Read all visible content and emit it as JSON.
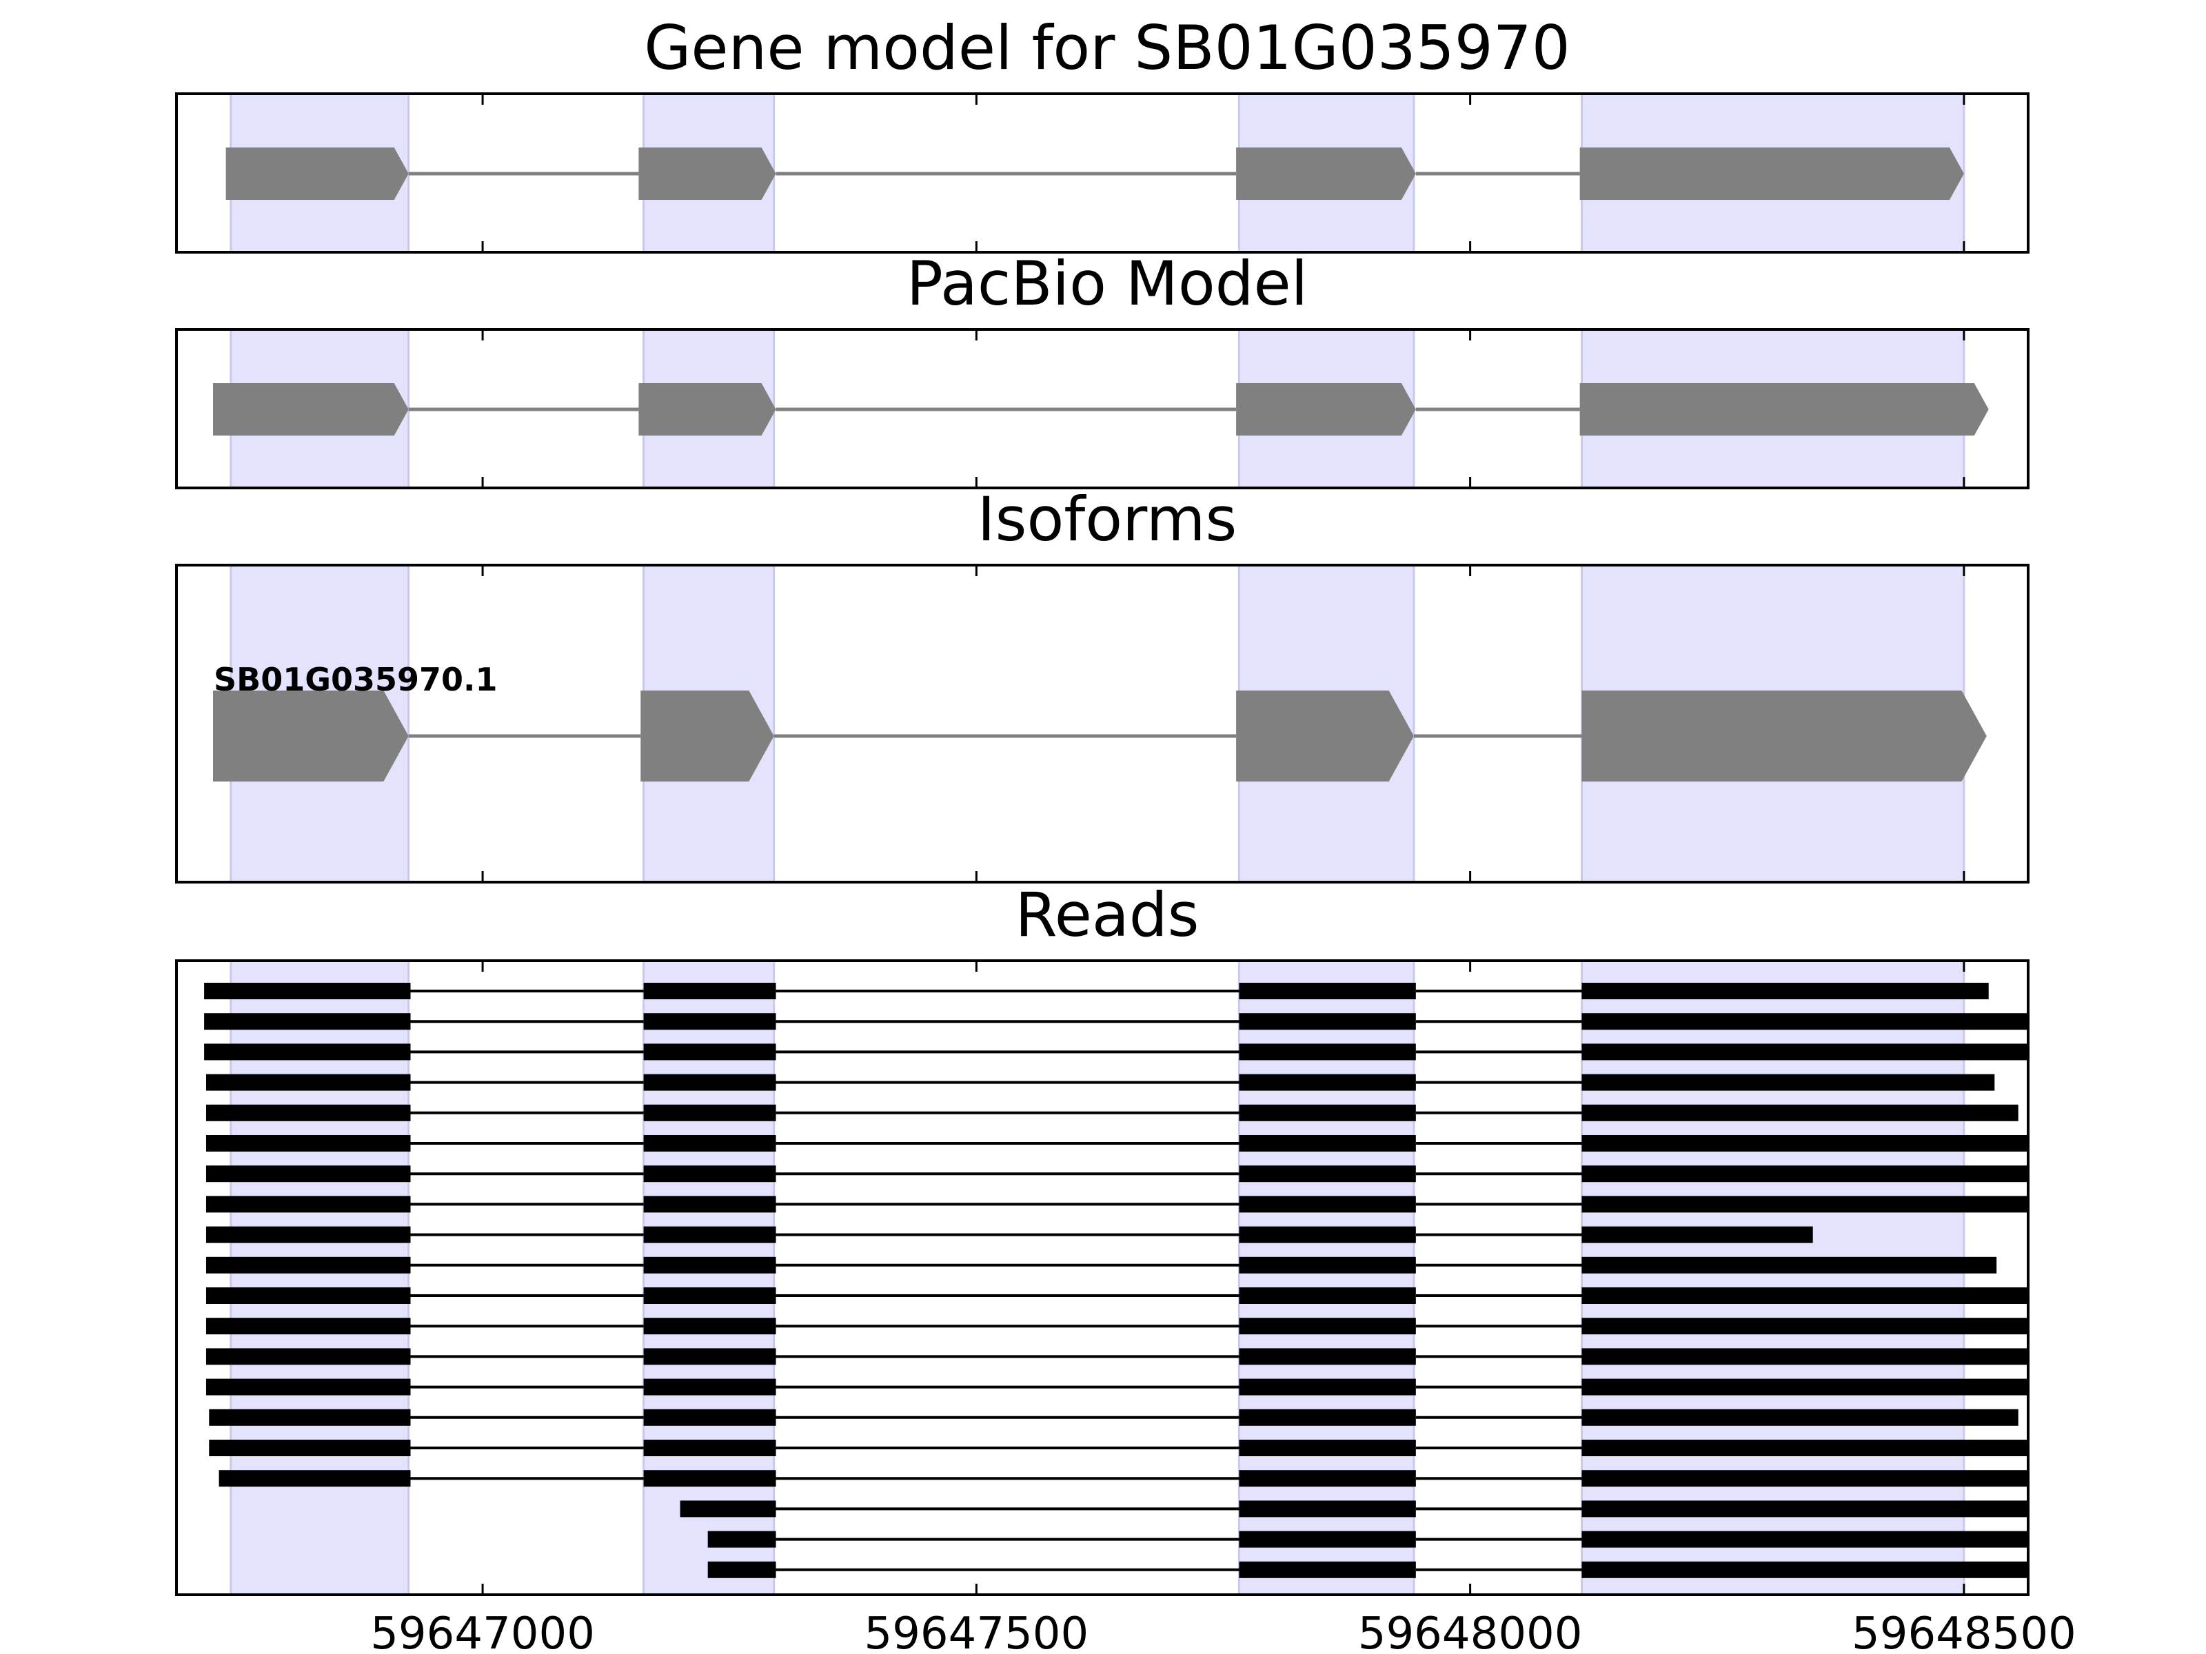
{
  "chart_data": {
    "type": "gene-structure",
    "x_ticks": [
      59647000,
      59647500,
      59648000,
      59648500
    ],
    "x_tick_labels": [
      "59647000",
      "59647500",
      "59648000",
      "59648500"
    ],
    "xlim": [
      59646690,
      59648565
    ],
    "highlight_color": "#e3e3fd",
    "highlight_regions": [
      [
        59646745,
        59646925
      ],
      [
        59647163,
        59647295
      ],
      [
        59647766,
        59647943
      ],
      [
        59648113,
        59648500
      ]
    ],
    "panels": [
      {
        "id": "gene-model",
        "title": "Gene model for SB01G035970",
        "strand": "+",
        "color": "#808080",
        "exons": [
          [
            59646740,
            59646925
          ],
          [
            59647158,
            59647297
          ],
          [
            59647763,
            59647945
          ],
          [
            59648111,
            59648500
          ]
        ]
      },
      {
        "id": "pacbio-model",
        "title": "PacBio Model",
        "strand": "+",
        "color": "#808080",
        "exons": [
          [
            59646727,
            59646925
          ],
          [
            59647158,
            59647297
          ],
          [
            59647763,
            59647945
          ],
          [
            59648111,
            59648525
          ]
        ]
      },
      {
        "id": "isoforms",
        "title": "Isoforms",
        "strand": "+",
        "color": "#808080",
        "isoform_label": "SB01G035970.1",
        "exons": [
          [
            59646727,
            59646925
          ],
          [
            59647160,
            59647295
          ],
          [
            59647763,
            59647943
          ],
          [
            59648113,
            59648523
          ]
        ]
      }
    ],
    "reads_panel": {
      "title": "Reads",
      "color": "#000000",
      "reads": [
        [
          [
            59646718,
            59646927
          ],
          [
            59647163,
            59647297
          ],
          [
            59647766,
            59647945
          ],
          [
            59648113,
            59648525
          ]
        ],
        [
          [
            59646718,
            59646927
          ],
          [
            59647163,
            59647297
          ],
          [
            59647766,
            59647945
          ],
          [
            59648113,
            59648565
          ]
        ],
        [
          [
            59646718,
            59646927
          ],
          [
            59647163,
            59647297
          ],
          [
            59647766,
            59647945
          ],
          [
            59648113,
            59648565
          ]
        ],
        [
          [
            59646720,
            59646927
          ],
          [
            59647163,
            59647297
          ],
          [
            59647766,
            59647945
          ],
          [
            59648113,
            59648531
          ]
        ],
        [
          [
            59646720,
            59646927
          ],
          [
            59647163,
            59647297
          ],
          [
            59647766,
            59647945
          ],
          [
            59648113,
            59648555
          ]
        ],
        [
          [
            59646720,
            59646927
          ],
          [
            59647163,
            59647297
          ],
          [
            59647766,
            59647945
          ],
          [
            59648113,
            59648565
          ]
        ],
        [
          [
            59646720,
            59646927
          ],
          [
            59647163,
            59647297
          ],
          [
            59647766,
            59647945
          ],
          [
            59648113,
            59648565
          ]
        ],
        [
          [
            59646720,
            59646927
          ],
          [
            59647163,
            59647297
          ],
          [
            59647766,
            59647945
          ],
          [
            59648113,
            59648565
          ]
        ],
        [
          [
            59646720,
            59646927
          ],
          [
            59647163,
            59647297
          ],
          [
            59647766,
            59647945
          ],
          [
            59648113,
            59648347
          ]
        ],
        [
          [
            59646720,
            59646927
          ],
          [
            59647163,
            59647297
          ],
          [
            59647766,
            59647945
          ],
          [
            59648113,
            59648533
          ]
        ],
        [
          [
            59646720,
            59646927
          ],
          [
            59647163,
            59647297
          ],
          [
            59647766,
            59647945
          ],
          [
            59648113,
            59648565
          ]
        ],
        [
          [
            59646720,
            59646927
          ],
          [
            59647163,
            59647297
          ],
          [
            59647766,
            59647945
          ],
          [
            59648113,
            59648565
          ]
        ],
        [
          [
            59646720,
            59646927
          ],
          [
            59647163,
            59647297
          ],
          [
            59647766,
            59647945
          ],
          [
            59648113,
            59648565
          ]
        ],
        [
          [
            59646720,
            59646927
          ],
          [
            59647163,
            59647297
          ],
          [
            59647766,
            59647945
          ],
          [
            59648113,
            59648565
          ]
        ],
        [
          [
            59646723,
            59646927
          ],
          [
            59647163,
            59647297
          ],
          [
            59647766,
            59647945
          ],
          [
            59648113,
            59648555
          ]
        ],
        [
          [
            59646723,
            59646927
          ],
          [
            59647163,
            59647297
          ],
          [
            59647766,
            59647945
          ],
          [
            59648113,
            59648565
          ]
        ],
        [
          [
            59646733,
            59646927
          ],
          [
            59647163,
            59647297
          ],
          [
            59647766,
            59647945
          ],
          [
            59648113,
            59648565
          ]
        ],
        [
          [
            59647200,
            59647297
          ],
          [
            59647766,
            59647945
          ],
          [
            59648113,
            59648565
          ]
        ],
        [
          [
            59647228,
            59647297
          ],
          [
            59647766,
            59647945
          ],
          [
            59648113,
            59648565
          ]
        ],
        [
          [
            59647228,
            59647297
          ],
          [
            59647766,
            59647945
          ],
          [
            59648113,
            59648565
          ]
        ]
      ]
    }
  }
}
